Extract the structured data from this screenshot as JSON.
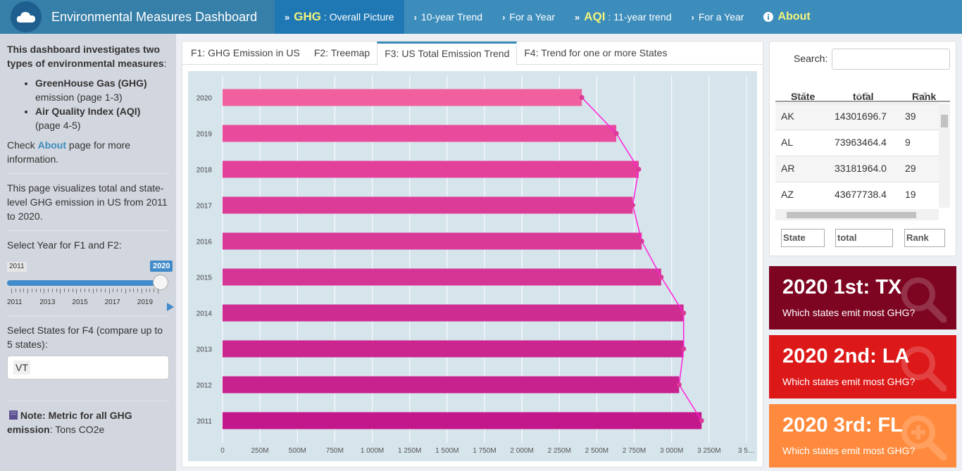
{
  "header": {
    "title": "Environmental Measures Dashboard",
    "nav": [
      {
        "big": "GHG",
        "label": ": Overall Picture",
        "active": true,
        "double": true
      },
      {
        "big": "",
        "label": "10-year Trend",
        "active": false,
        "double": false
      },
      {
        "big": "",
        "label": "For a Year",
        "active": false,
        "double": false
      },
      {
        "big": "AQI",
        "label": ": 11-year trend",
        "active": false,
        "double": true
      },
      {
        "big": "",
        "label": "For a Year",
        "active": false,
        "double": false
      },
      {
        "big": "About",
        "label": "",
        "active": false,
        "info": true
      }
    ]
  },
  "sidebar": {
    "intro": "This dashboard investigates two types of environmental measures",
    "item1_bold": "GreenHouse Gas (GHG)",
    "item1_rest": "emission (page 1-3)",
    "item2_bold": "Air Quality Index (AQI)",
    "item2_rest": "(page 4-5)",
    "check_pre": "Check ",
    "check_link": "About",
    "check_post": " page for more information.",
    "page_desc": "This page visualizes total and state-level GHG emission in US from 2011 to 2020.",
    "slider_label": "Select Year for F1 and F2:",
    "slider_min": "2011",
    "slider_max": "2020",
    "slider_value": "2020",
    "slider_ticks": [
      "2011",
      "2013",
      "2015",
      "2017",
      "2019"
    ],
    "states_label": "Select States for F4 (compare up to 5 states):",
    "states_selected": "VT",
    "note_label": "Note",
    "note_text": ": Metric for all GHG",
    "note_bold2": "emission",
    "note_text2": ": Tons CO2e"
  },
  "tabs": [
    "F1: GHG Emission in US",
    "F2: Treemap",
    "F3: US Total Emission Trend",
    "F4: Trend for one or more States"
  ],
  "active_tab": 2,
  "chart_data": {
    "type": "bar",
    "orientation": "horizontal",
    "categories": [
      "2020",
      "2019",
      "2018",
      "2017",
      "2016",
      "2015",
      "2014",
      "2013",
      "2012",
      "2011"
    ],
    "values": [
      2400,
      2630,
      2780,
      2740,
      2800,
      2930,
      3080,
      3080,
      3050,
      3200
    ],
    "unit": "M",
    "x_ticks": [
      "0",
      "250M",
      "500M",
      "750M",
      "1 000M",
      "1 250M",
      "1 500M",
      "1 750M",
      "2 000M",
      "2 250M",
      "2 500M",
      "2 750M",
      "3 000M",
      "3 250M",
      "3 5…"
    ],
    "xlim": [
      0,
      3500
    ],
    "bar_colors": [
      "#f0609e",
      "#e84b9c",
      "#e2409a",
      "#dc3c98",
      "#d93a97",
      "#d53595",
      "#cf2c92",
      "#cb2590",
      "#c8228f",
      "#c2188b"
    ],
    "line_color": "#ff1fd8",
    "grid": true
  },
  "table": {
    "search_label": "Search:",
    "columns": [
      "State",
      "total",
      "Rank"
    ],
    "rows": [
      [
        "AK",
        "14301696.7",
        "39"
      ],
      [
        "AL",
        "73963464.4",
        "9"
      ],
      [
        "AR",
        "33181964.0",
        "29"
      ],
      [
        "AZ",
        "43677738.4",
        "19"
      ]
    ],
    "filters": [
      "State",
      "total",
      "Rank"
    ]
  },
  "valueboxes": [
    {
      "title": "2020 1st: TX",
      "sub": "Which states emit most GHG?",
      "color": "#7d0521"
    },
    {
      "title": "2020 2nd: LA",
      "sub": "Which states emit most GHG?",
      "color": "#dd1818"
    },
    {
      "title": "2020 3rd: FL",
      "sub": "Which states emit most GHG?",
      "color": "#ff8a3d"
    }
  ]
}
